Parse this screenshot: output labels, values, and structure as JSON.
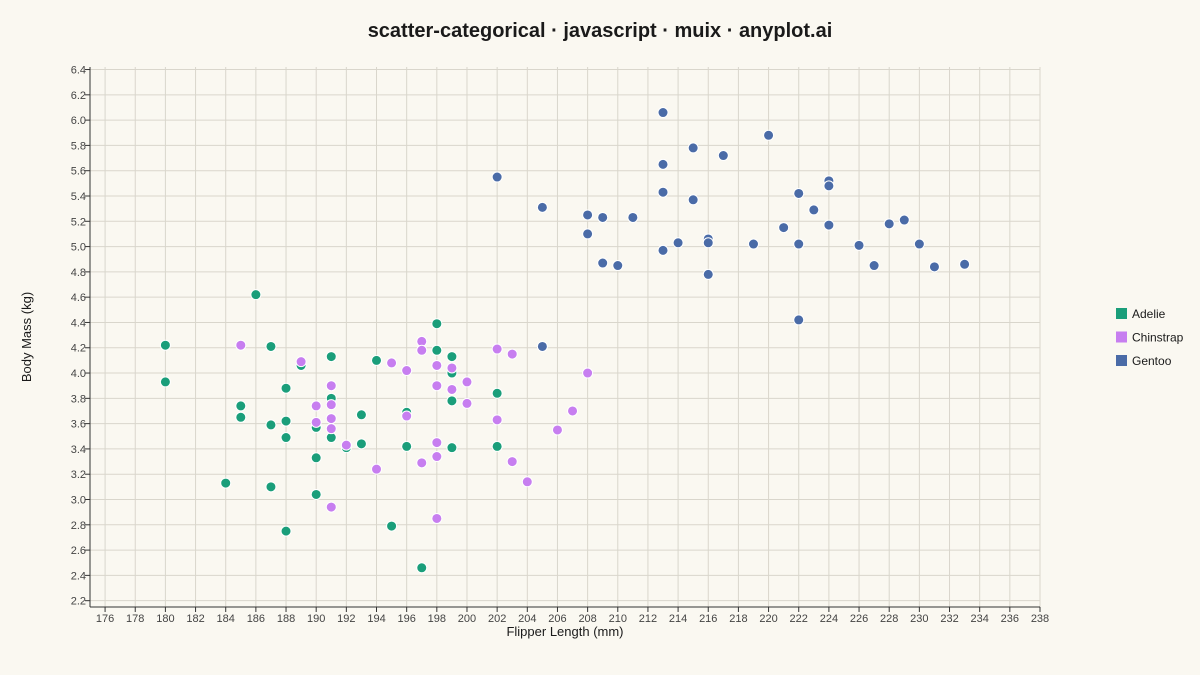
{
  "chart_data": {
    "type": "scatter",
    "title": "scatter-categorical · javascript · muix · anyplot.ai",
    "xlabel": "Flipper Length (mm)",
    "ylabel": "Body Mass (kg)",
    "xlim": [
      175,
      238
    ],
    "ylim": [
      2.15,
      6.42
    ],
    "xticks": [
      176,
      178,
      180,
      182,
      184,
      186,
      188,
      190,
      192,
      194,
      196,
      198,
      200,
      202,
      204,
      206,
      208,
      210,
      212,
      214,
      216,
      218,
      220,
      222,
      224,
      226,
      228,
      230,
      232,
      234,
      236,
      238
    ],
    "yticks": [
      2.2,
      2.4,
      2.6,
      2.8,
      3.0,
      3.2,
      3.4,
      3.6,
      3.8,
      4.0,
      4.2,
      4.4,
      4.6,
      4.8,
      5.0,
      5.2,
      5.4,
      5.6,
      5.8,
      6.0,
      6.2,
      6.4
    ],
    "grid": true,
    "legend_position": "right",
    "series": [
      {
        "name": "Adelie",
        "color": "#1a9e7a",
        "points": [
          [
            180,
            4.22
          ],
          [
            180,
            3.93
          ],
          [
            184,
            3.13
          ],
          [
            185,
            3.74
          ],
          [
            185,
            3.65
          ],
          [
            186,
            4.62
          ],
          [
            187,
            4.21
          ],
          [
            187,
            3.59
          ],
          [
            187,
            3.1
          ],
          [
            188,
            3.88
          ],
          [
            188,
            3.62
          ],
          [
            188,
            3.49
          ],
          [
            188,
            2.75
          ],
          [
            189,
            4.06
          ],
          [
            190,
            3.57
          ],
          [
            190,
            3.33
          ],
          [
            190,
            3.04
          ],
          [
            191,
            4.13
          ],
          [
            191,
            3.8
          ],
          [
            191,
            3.49
          ],
          [
            192,
            3.41
          ],
          [
            193,
            3.67
          ],
          [
            193,
            3.44
          ],
          [
            194,
            4.1
          ],
          [
            195,
            2.79
          ],
          [
            196,
            3.69
          ],
          [
            196,
            3.42
          ],
          [
            197,
            2.46
          ],
          [
            198,
            4.39
          ],
          [
            198,
            4.18
          ],
          [
            199,
            4.13
          ],
          [
            199,
            4.0
          ],
          [
            199,
            3.78
          ],
          [
            199,
            3.41
          ],
          [
            202,
            3.84
          ],
          [
            202,
            3.42
          ]
        ]
      },
      {
        "name": "Chinstrap",
        "color": "#c77ef0",
        "points": [
          [
            185,
            4.22
          ],
          [
            189,
            4.09
          ],
          [
            190,
            3.74
          ],
          [
            190,
            3.61
          ],
          [
            191,
            3.9
          ],
          [
            191,
            3.75
          ],
          [
            191,
            3.64
          ],
          [
            191,
            3.56
          ],
          [
            191,
            2.94
          ],
          [
            192,
            3.43
          ],
          [
            194,
            3.24
          ],
          [
            195,
            4.08
          ],
          [
            196,
            4.02
          ],
          [
            196,
            3.66
          ],
          [
            197,
            4.25
          ],
          [
            197,
            4.18
          ],
          [
            197,
            3.29
          ],
          [
            198,
            4.06
          ],
          [
            198,
            3.9
          ],
          [
            198,
            3.45
          ],
          [
            198,
            3.34
          ],
          [
            198,
            2.85
          ],
          [
            199,
            4.04
          ],
          [
            199,
            3.87
          ],
          [
            200,
            3.93
          ],
          [
            200,
            3.76
          ],
          [
            202,
            4.19
          ],
          [
            202,
            3.63
          ],
          [
            203,
            4.15
          ],
          [
            203,
            3.3
          ],
          [
            204,
            3.14
          ],
          [
            206,
            3.55
          ],
          [
            207,
            3.7
          ],
          [
            208,
            4.0
          ]
        ]
      },
      {
        "name": "Gentoo",
        "color": "#4a6ba7",
        "points": [
          [
            202,
            5.55
          ],
          [
            205,
            5.31
          ],
          [
            205,
            4.21
          ],
          [
            208,
            5.25
          ],
          [
            208,
            5.1
          ],
          [
            209,
            5.23
          ],
          [
            209,
            4.87
          ],
          [
            210,
            4.85
          ],
          [
            211,
            5.23
          ],
          [
            213,
            6.06
          ],
          [
            213,
            5.65
          ],
          [
            213,
            5.43
          ],
          [
            213,
            4.97
          ],
          [
            214,
            5.03
          ],
          [
            215,
            5.78
          ],
          [
            215,
            5.37
          ],
          [
            216,
            5.06
          ],
          [
            216,
            5.03
          ],
          [
            216,
            4.78
          ],
          [
            217,
            5.72
          ],
          [
            219,
            5.02
          ],
          [
            220,
            5.88
          ],
          [
            221,
            5.15
          ],
          [
            222,
            5.42
          ],
          [
            222,
            5.02
          ],
          [
            222,
            4.42
          ],
          [
            223,
            5.29
          ],
          [
            224,
            5.52
          ],
          [
            224,
            5.48
          ],
          [
            224,
            5.17
          ],
          [
            226,
            5.01
          ],
          [
            227,
            4.85
          ],
          [
            228,
            5.18
          ],
          [
            229,
            5.21
          ],
          [
            230,
            5.02
          ],
          [
            231,
            4.84
          ],
          [
            233,
            4.86
          ]
        ]
      }
    ]
  }
}
